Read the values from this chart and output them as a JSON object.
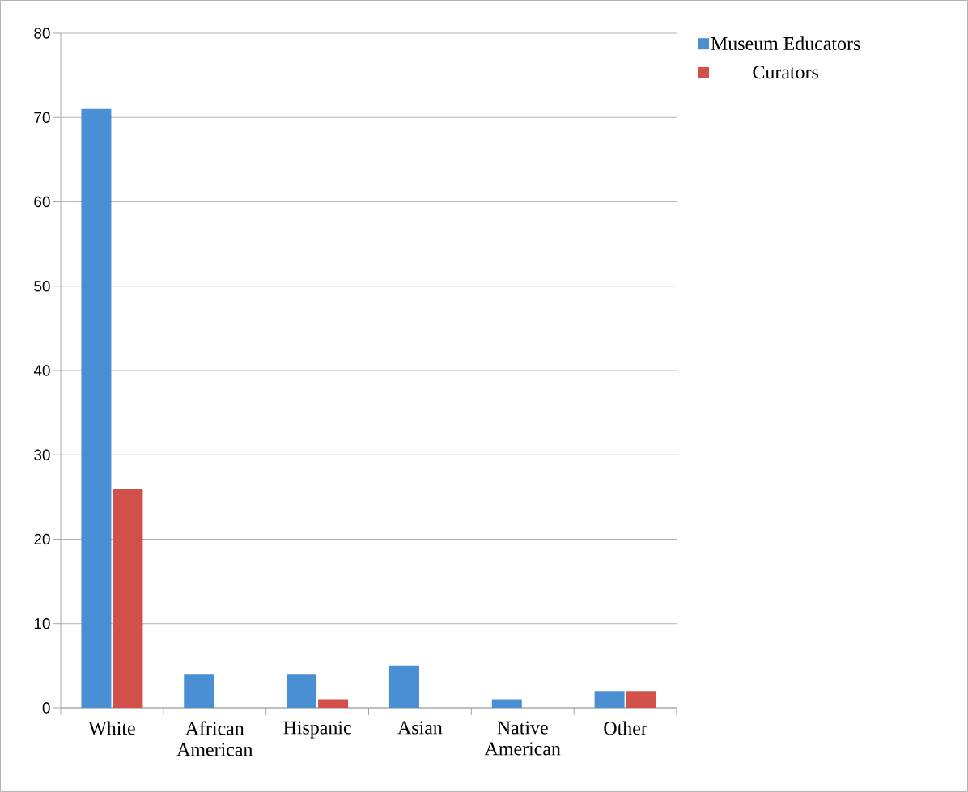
{
  "chart_data": {
    "type": "bar",
    "categories": [
      "White",
      "African American",
      "Hispanic",
      "Asian",
      "Native American",
      "Other"
    ],
    "series": [
      {
        "name": "Museum Educators",
        "color": "#4a8fd4",
        "values": [
          71,
          4,
          4,
          5,
          1,
          2
        ]
      },
      {
        "name": "Curators",
        "color": "#d2504a",
        "values": [
          26,
          0,
          1,
          0,
          0,
          2
        ]
      }
    ],
    "ylim": [
      0,
      80
    ],
    "yticks": [
      0,
      10,
      20,
      30,
      40,
      50,
      60,
      70,
      80
    ],
    "grid": "y",
    "legend": "top right"
  }
}
